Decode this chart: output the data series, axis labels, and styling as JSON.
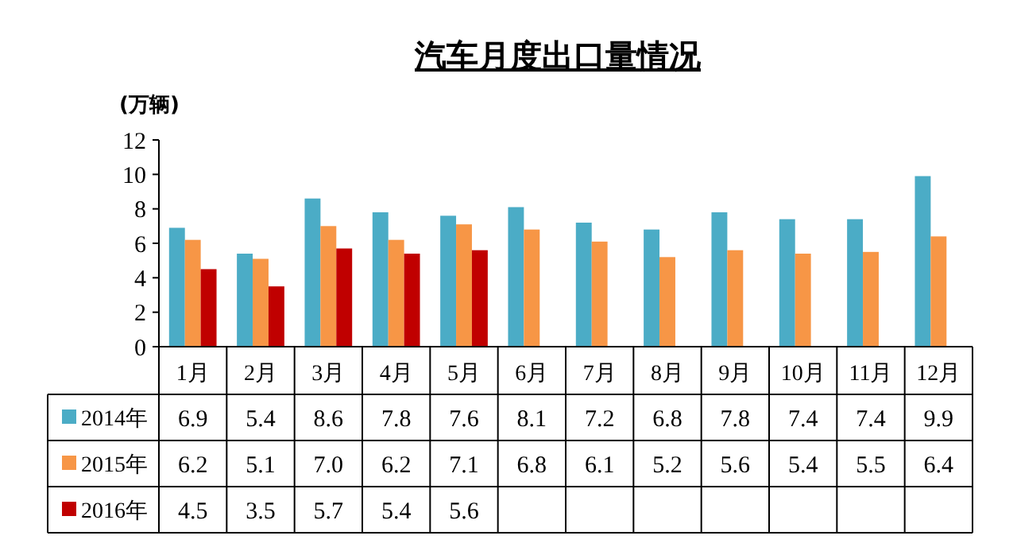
{
  "chart_data": {
    "type": "bar",
    "title": "汽车月度出口量情况",
    "ylabel": "(万辆)",
    "categories": [
      "1月",
      "2月",
      "3月",
      "4月",
      "5月",
      "6月",
      "7月",
      "8月",
      "9月",
      "10月",
      "11月",
      "12月"
    ],
    "series": [
      {
        "name": "2014年",
        "color": "#4bacc6",
        "values": [
          6.9,
          5.4,
          8.6,
          7.8,
          7.6,
          8.1,
          7.2,
          6.8,
          7.8,
          7.4,
          7.4,
          9.9
        ],
        "value_labels": [
          "6.9",
          "5.4",
          "8.6",
          "7.8",
          "7.6",
          "8.1",
          "7.2",
          "6.8",
          "7.8",
          "7.4",
          "7.4",
          "9.9"
        ]
      },
      {
        "name": "2015年",
        "color": "#f79646",
        "values": [
          6.2,
          5.1,
          7.0,
          6.2,
          7.1,
          6.8,
          6.1,
          5.2,
          5.6,
          5.4,
          5.5,
          6.4
        ],
        "value_labels": [
          "6.2",
          "5.1",
          "7.0",
          "6.2",
          "7.1",
          "6.8",
          "6.1",
          "5.2",
          "5.6",
          "5.4",
          "5.5",
          "6.4"
        ]
      },
      {
        "name": "2016年",
        "color": "#c00000",
        "values": [
          4.5,
          3.5,
          5.7,
          5.4,
          5.6,
          null,
          null,
          null,
          null,
          null,
          null,
          null
        ],
        "value_labels": [
          "4.5",
          "3.5",
          "5.7",
          "5.4",
          "5.6",
          null,
          null,
          null,
          null,
          null,
          null,
          null
        ]
      }
    ],
    "ylim": [
      0,
      12
    ],
    "yticks": [
      0,
      2,
      4,
      6,
      8,
      10,
      12
    ],
    "grid": false,
    "legend": "bottom left"
  }
}
